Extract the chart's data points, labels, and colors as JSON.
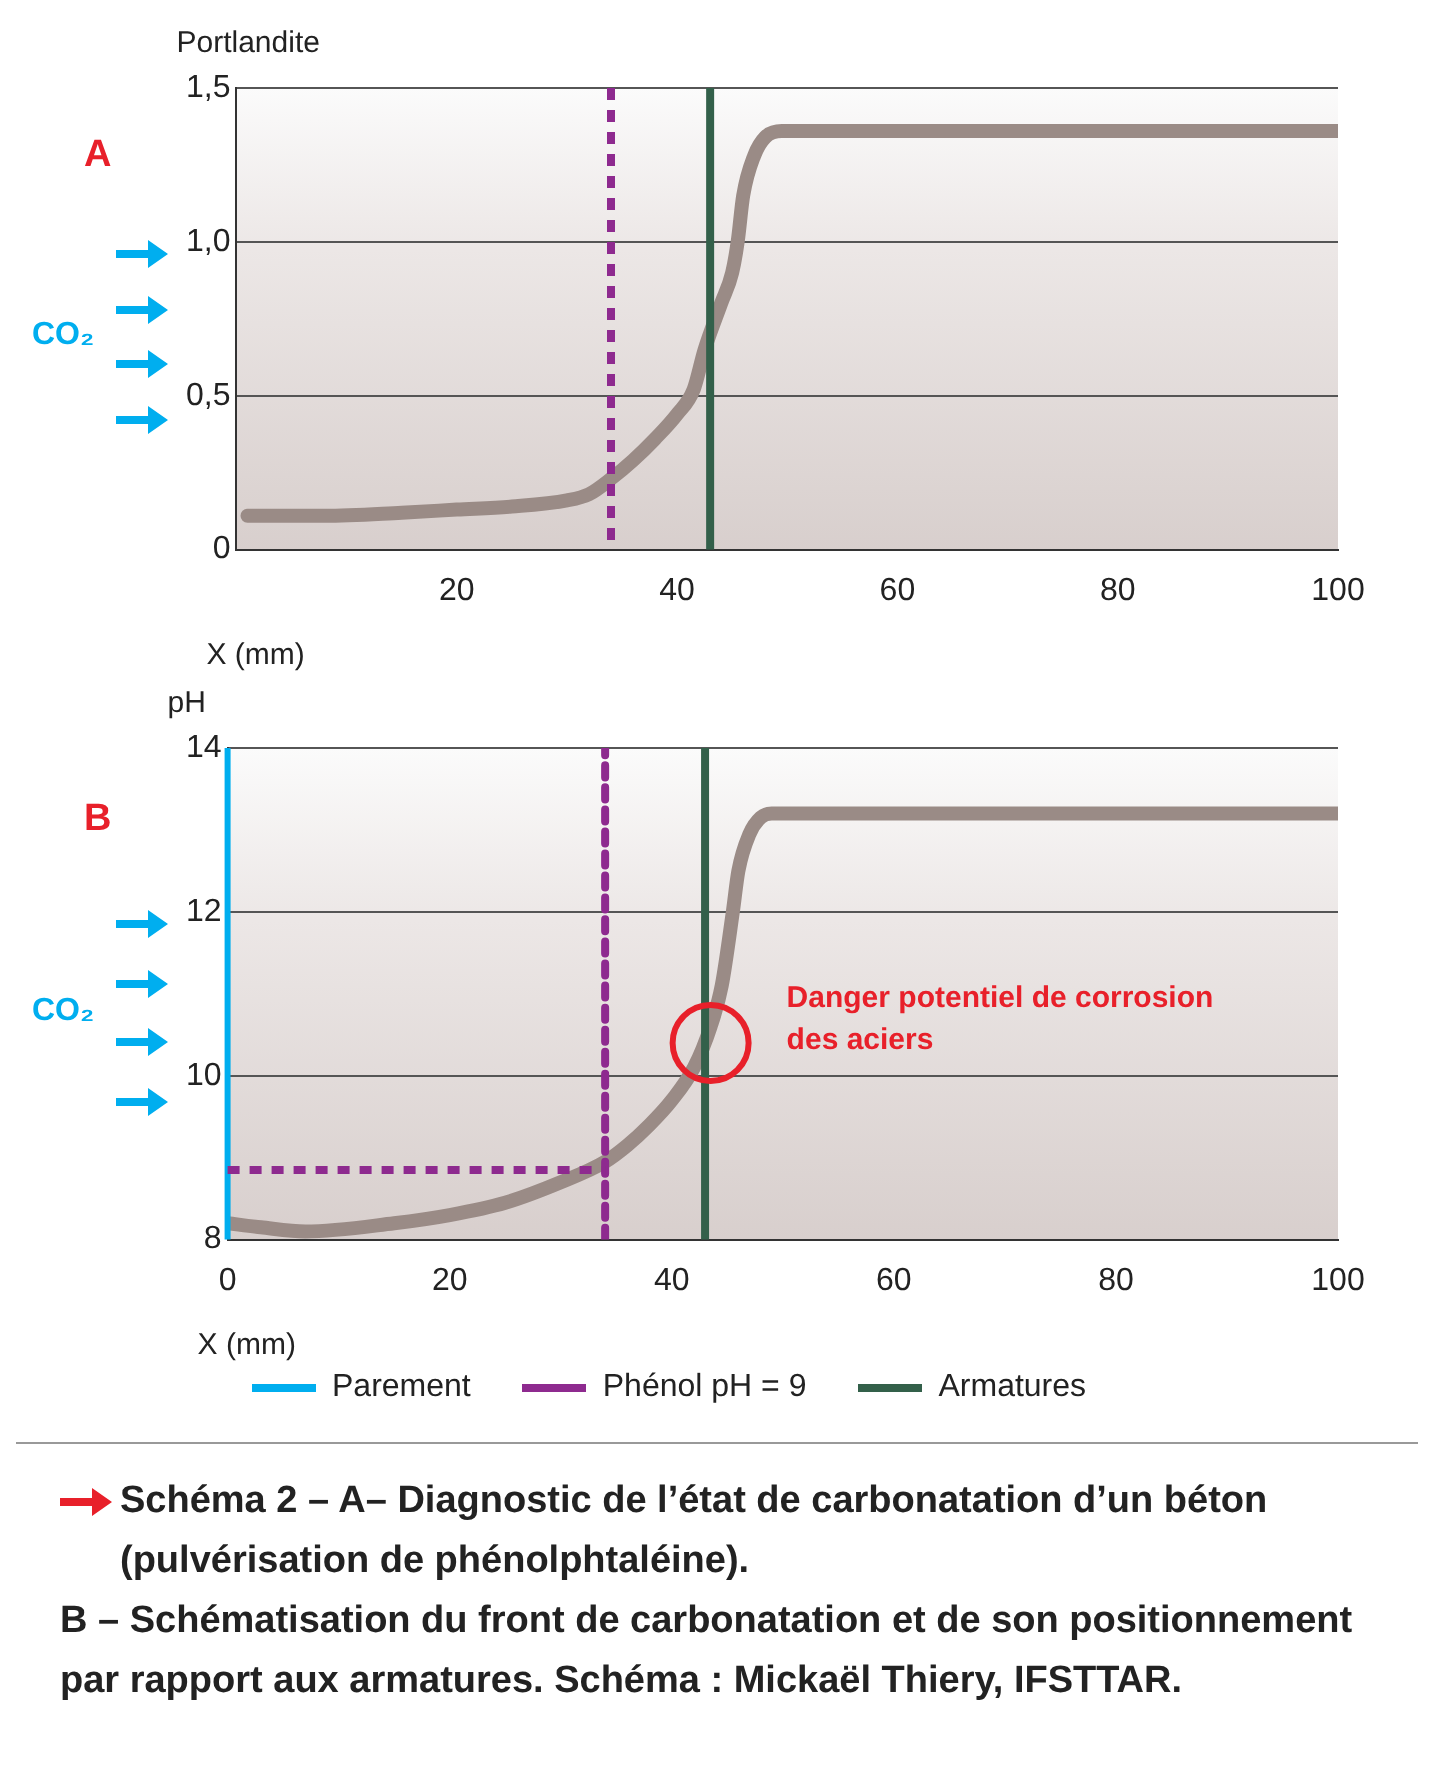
{
  "chart_data": [
    {
      "type": "line",
      "ylabel": "Portlandite",
      "xlabel": "X (mm)",
      "annotations": [
        "A",
        "CO₂"
      ],
      "xlim": [
        0,
        100
      ],
      "xticks": [
        20,
        40,
        60,
        80,
        100
      ],
      "ylim": [
        0,
        1.5
      ],
      "yticks": [
        0,
        {
          "value": 0.5,
          "label": "0,5"
        },
        {
          "value": 1.0,
          "label": "1,0"
        },
        {
          "value": 1.5,
          "label": "1,5"
        }
      ],
      "grid": "y",
      "legend": false,
      "marker": "none",
      "line_style": "solid",
      "series": [
        {
          "color": "#9a8b86",
          "x": [
            1,
            8,
            15,
            20,
            25,
            30,
            32,
            34,
            36,
            38,
            40,
            41.5,
            42.5,
            44,
            45,
            45.5,
            46,
            47,
            48,
            49.5,
            60,
            100
          ],
          "values": [
            0.11,
            0.11,
            0.12,
            0.13,
            0.14,
            0.16,
            0.18,
            0.23,
            0.29,
            0.36,
            0.44,
            0.52,
            0.65,
            0.8,
            0.9,
            1.0,
            1.15,
            1.28,
            1.34,
            1.36,
            1.36,
            1.36
          ]
        }
      ],
      "ref_lines": [
        {
          "axis": "x",
          "value": 34,
          "color": "#8e2a8f",
          "line_style": "dashed"
        },
        {
          "axis": "x",
          "value": 43,
          "color": "#33604a",
          "line_style": "solid"
        }
      ]
    },
    {
      "type": "line",
      "ylabel": "pH",
      "xlabel": "X (mm)",
      "annotations": [
        "B",
        "CO₂",
        {
          "text": "Danger potentiel de corrosion des aciers",
          "x": 43.5,
          "y": 10.4
        },
        "Schéma 2 – A– Diagnostic de l’état de carbonatation d’un béton (pulvérisation de phénolphtaléine).",
        "B – Schématisation du front de carbonatation et de son positionnement par rapport aux armatures. Schéma : Mickaël Thiery, IFSTTAR."
      ],
      "xlim": [
        0,
        100
      ],
      "xticks": [
        0,
        20,
        40,
        60,
        80,
        100
      ],
      "ylim": [
        8,
        14
      ],
      "yticks": [
        8,
        10,
        12,
        14
      ],
      "grid": "y",
      "legend": "bottom",
      "marker": "none",
      "line_style": "solid",
      "series": [
        {
          "color": "#9a8b86",
          "x": [
            0,
            3,
            7,
            15,
            20,
            25,
            30,
            34,
            36,
            38,
            40,
            42,
            43.5,
            44.5,
            45.5,
            46,
            47,
            48,
            49,
            100
          ],
          "values": [
            8.2,
            8.15,
            8.1,
            8.2,
            8.3,
            8.45,
            8.7,
            8.95,
            9.15,
            9.4,
            9.7,
            10.1,
            10.6,
            11.1,
            12.0,
            12.5,
            12.95,
            13.15,
            13.2,
            13.2
          ]
        },
        {
          "name": "Phénol pH = 9",
          "color": "#8e2a8f",
          "line_style": "dashed",
          "x": [
            34,
            34
          ],
          "values": [
            8,
            14
          ]
        },
        {
          "name": "Armatures",
          "color": "#33604a",
          "x": [
            43,
            43
          ],
          "values": [
            8,
            14
          ]
        }
      ],
      "ref_lines": [
        {
          "axis": "x",
          "value": 0,
          "label": "Parement",
          "color": "#00aeef",
          "line_style": "solid"
        },
        {
          "axis": "y",
          "value": 8.85,
          "color": "#8e2a8f",
          "line_style": "dashed"
        }
      ]
    }
  ]
}
